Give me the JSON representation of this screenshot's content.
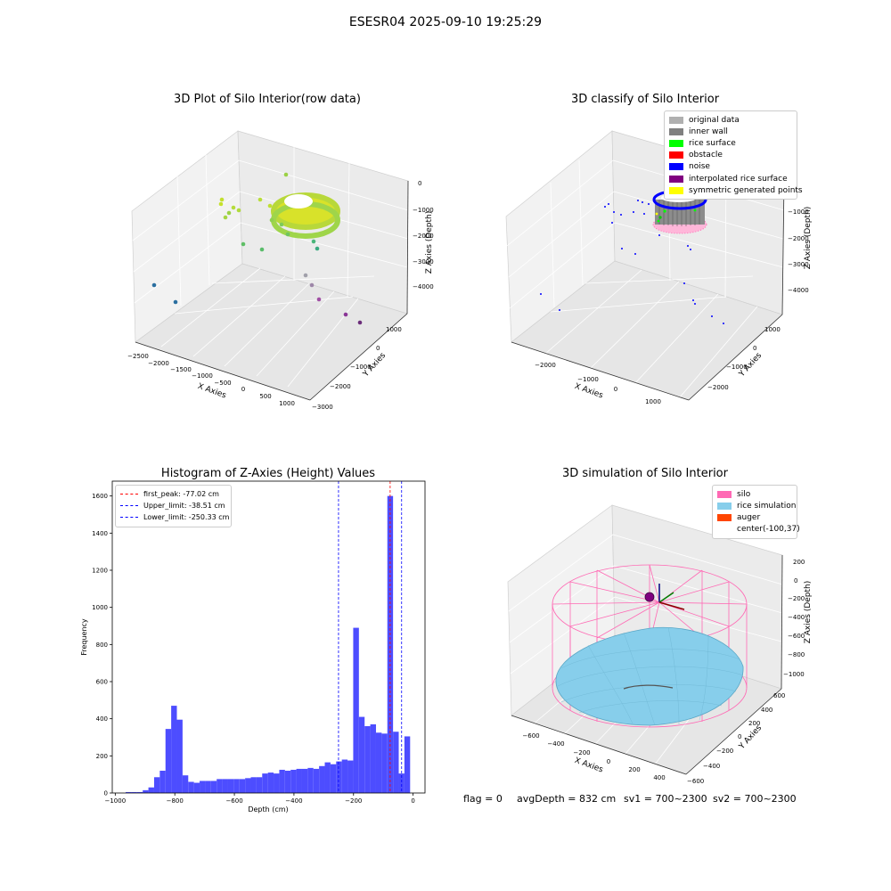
{
  "figure": {
    "suptitle": "ESESR04 2025-09-10 19:25:29",
    "footer": {
      "flag": "flag = 0",
      "avg_depth": "avgDepth = 832 cm",
      "sv1": "sv1 = 700~2300",
      "sv2": "sv2 = 700~2300"
    }
  },
  "colors": {
    "hist_bar": "#4d4dff",
    "peak_line": "#ff0000",
    "limit_line": "#0000ff",
    "silo_pink": "#ff69b4",
    "rice_blue": "#87ceeb",
    "auger_orange": "#ff4500"
  },
  "panels": {
    "raw": {
      "title": "3D Plot of Silo Interior(row data)",
      "xlabel": "X Axies",
      "ylabel": "Y Axies",
      "zlabel": "Z Axies (Depth)",
      "xticks": [
        "−2500",
        "−2000",
        "−1500",
        "−1000",
        "−500",
        "0",
        "500",
        "1000"
      ],
      "yticks": [
        "1000",
        "0",
        "−1000",
        "−2000",
        "−3000"
      ],
      "zticks": [
        "0",
        "−1000",
        "−2000",
        "−3000",
        "−4000"
      ]
    },
    "classify": {
      "title": "3D classify of Silo Interior",
      "xlabel": "X Axies",
      "ylabel": "Y Axies",
      "zlabel": "Z Axies (Depth)",
      "xticks": [
        "−2000",
        "−1000",
        "0",
        "1000"
      ],
      "yticks": [
        "1000",
        "0",
        "−1000",
        "−2000"
      ],
      "zticks": [
        "0",
        "−1000",
        "−2000",
        "−3000",
        "−4000"
      ],
      "legend": [
        {
          "label": "original data",
          "color": "#b0b0b0"
        },
        {
          "label": "inner wall",
          "color": "#808080"
        },
        {
          "label": "rice surface",
          "color": "#00ff00"
        },
        {
          "label": "obstacle",
          "color": "#ff0000"
        },
        {
          "label": "noise",
          "color": "#0000ff"
        },
        {
          "label": "interpolated rice surface",
          "color": "#800080"
        },
        {
          "label": "symmetric generated points",
          "color": "#ffff00"
        }
      ]
    },
    "histogram": {
      "title": "Histogram of Z-Axies (Height) Values",
      "xlabel": "Depth (cm)",
      "ylabel": "Frequency",
      "legend": [
        {
          "label": "first_peak: -77.02 cm",
          "color": "#ff0000"
        },
        {
          "label": "Upper_limit: -38.51 cm",
          "color": "#0000ff"
        },
        {
          "label": "Lower_limit: -250.33 cm",
          "color": "#0000ff"
        }
      ]
    },
    "simulation": {
      "title": "3D simulation of Silo Interior",
      "xlabel": "X Axies",
      "ylabel": "Y Axies",
      "zlabel": "Z Axies (Depth)",
      "xticks": [
        "−600",
        "−400",
        "−200",
        "0",
        "200",
        "400"
      ],
      "yticks": [
        "600",
        "400",
        "200",
        "0",
        "−200",
        "−400",
        "−600"
      ],
      "zticks": [
        "200",
        "0",
        "−200",
        "−400",
        "−600",
        "−800",
        "−1000"
      ],
      "legend": [
        {
          "label": "silo",
          "color": "#ff69b4"
        },
        {
          "label": "rice simulation",
          "color": "#87ceeb"
        },
        {
          "label": "auger",
          "color": "#ff4500"
        },
        {
          "label": "center(-100,37)",
          "color": ""
        }
      ]
    }
  },
  "chart_data": [
    {
      "type": "bar",
      "title": "Histogram of Z-Axies (Height) Values",
      "xlabel": "Depth (cm)",
      "ylabel": "Frequency",
      "xlim": [
        -1010,
        40
      ],
      "ylim": [
        0,
        1680
      ],
      "xticks": [
        -1000,
        -800,
        -600,
        -400,
        -200,
        0
      ],
      "yticks": [
        0,
        200,
        400,
        600,
        800,
        1000,
        1200,
        1400,
        1600
      ],
      "bin_start": -965,
      "bin_width": 19.1,
      "values": [
        5,
        5,
        5,
        15,
        30,
        85,
        120,
        345,
        470,
        395,
        95,
        60,
        55,
        65,
        65,
        65,
        75,
        75,
        75,
        75,
        75,
        80,
        85,
        85,
        105,
        110,
        105,
        125,
        120,
        125,
        130,
        130,
        135,
        130,
        145,
        165,
        155,
        170,
        180,
        175,
        890,
        410,
        360,
        370,
        325,
        320,
        1600,
        330,
        105,
        305
      ],
      "vlines": [
        {
          "x": -77.02,
          "label": "first_peak: -77.02 cm",
          "color": "#ff0000"
        },
        {
          "x": -38.51,
          "label": "Upper_limit: -38.51 cm",
          "color": "#0000ff"
        },
        {
          "x": -250.33,
          "label": "Lower_limit: -250.33 cm",
          "color": "#0000ff"
        }
      ]
    }
  ]
}
